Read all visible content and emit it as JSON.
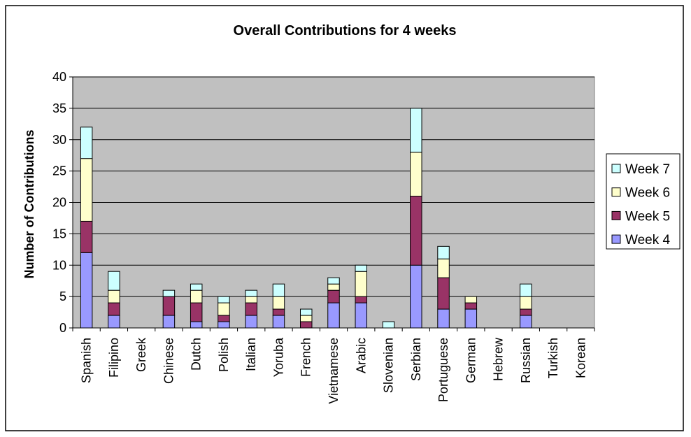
{
  "chart_data": {
    "type": "bar",
    "stacked": true,
    "title": "Overall Contributions for 4 weeks",
    "xlabel": "",
    "ylabel": "Number of Contributions",
    "ylim": [
      0,
      40
    ],
    "yticks": [
      "0",
      "5",
      "10",
      "15",
      "20",
      "25",
      "30",
      "35",
      "40"
    ],
    "grid": true,
    "legend_position": "right",
    "categories": [
      "Spanish",
      "Filipino",
      "Greek",
      "Chinese",
      "Dutch",
      "Polish",
      "Italian",
      "Yoruba",
      "French",
      "Vietnamese",
      "Arabic",
      "Slovenian",
      "Serbian",
      "Portuguese",
      "German",
      "Hebrew",
      "Russian",
      "Turkish",
      "Korean"
    ],
    "series": [
      {
        "name": "Week 4",
        "color": "#9999ff",
        "values": [
          12,
          2,
          0,
          2,
          1,
          1,
          2,
          2,
          0,
          4,
          4,
          0,
          10,
          3,
          3,
          0,
          2,
          0,
          0
        ]
      },
      {
        "name": "Week 5",
        "color": "#993366",
        "values": [
          5,
          2,
          0,
          3,
          3,
          1,
          2,
          1,
          1,
          2,
          1,
          0,
          11,
          5,
          1,
          0,
          1,
          0,
          0
        ]
      },
      {
        "name": "Week 6",
        "color": "#ffffcc",
        "values": [
          10,
          2,
          0,
          0,
          2,
          2,
          1,
          2,
          1,
          1,
          4,
          0,
          7,
          3,
          1,
          0,
          2,
          0,
          0
        ]
      },
      {
        "name": "Week 7",
        "color": "#ccffff",
        "values": [
          5,
          3,
          0,
          1,
          1,
          1,
          1,
          2,
          1,
          1,
          1,
          1,
          7,
          2,
          0,
          0,
          2,
          0,
          0
        ]
      }
    ],
    "plot_background": "#c0c0c0"
  }
}
